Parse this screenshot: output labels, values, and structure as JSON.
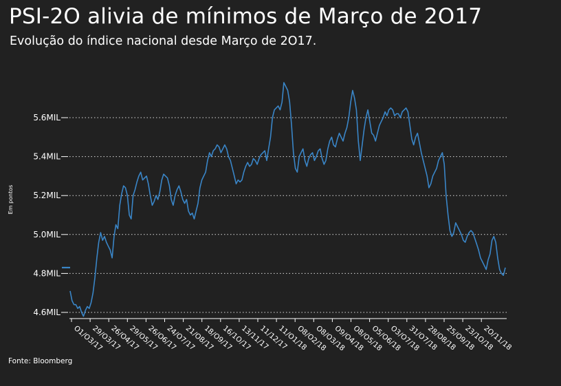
{
  "header": {
    "title": "PSI-2O alivia de mínimos de Março de 2O17",
    "subtitle": "Evolução do índice nacional desde Março de 2O17."
  },
  "footer": {
    "source": "Fonte: Bloomberg"
  },
  "colors": {
    "background": "#212121",
    "line": "#3a86c8",
    "text": "#ffffff",
    "grid": "#ffffff"
  },
  "chart_data": {
    "type": "line",
    "title": "PSI-2O alivia de mínimos de Março de 2O17",
    "subtitle": "Evolução do índice nacional desde Março de 2O17.",
    "ylabel": "Em pontos",
    "xlabel": "",
    "ylim": [
      4600,
      5800
    ],
    "grid": "horizontal-dotted",
    "y_ticks": [
      {
        "value": 4600,
        "label": "4.6MIL"
      },
      {
        "value": 4800,
        "label": "4.8MIL"
      },
      {
        "value": 5000,
        "label": "5.0MIL"
      },
      {
        "value": 5200,
        "label": "5.2MIL"
      },
      {
        "value": 5400,
        "label": "5.4MIL"
      },
      {
        "value": 5600,
        "label": "5.6MIL"
      }
    ],
    "x_ticks": [
      "O1/O3/17",
      "29/O3/17",
      "26/O4/17",
      "29/O5/17",
      "26/O6/17",
      "24/O7/17",
      "21/O8/17",
      "18/O9/17",
      "16/1O/17",
      "13/11/17",
      "11/12/17",
      "11/O1/18",
      "O8/O2/18",
      "O8/O3/18",
      "O9/O4/18",
      "O8/O5/18",
      "O5/O6/18",
      "O3/O7/18",
      "31/O7/18",
      "28/O8/18",
      "25/O9/18",
      "23/1O/18",
      "2O/11/18"
    ],
    "series": [
      {
        "values": [
          4710,
          4660,
          4640,
          4640,
          4620,
          4630,
          4600,
          4580,
          4610,
          4630,
          4620,
          4650,
          4700,
          4780,
          4880,
          4960,
          5010,
          4970,
          4990,
          4960,
          4940,
          4920,
          4880,
          4990,
          5050,
          5030,
          5150,
          5210,
          5250,
          5240,
          5200,
          5100,
          5080,
          5200,
          5230,
          5270,
          5300,
          5320,
          5280,
          5290,
          5300,
          5260,
          5200,
          5150,
          5170,
          5200,
          5180,
          5220,
          5280,
          5310,
          5300,
          5290,
          5250,
          5180,
          5150,
          5200,
          5230,
          5250,
          5220,
          5180,
          5160,
          5180,
          5120,
          5100,
          5110,
          5080,
          5120,
          5160,
          5240,
          5280,
          5300,
          5320,
          5380,
          5420,
          5400,
          5430,
          5440,
          5460,
          5450,
          5420,
          5440,
          5460,
          5440,
          5400,
          5380,
          5340,
          5300,
          5260,
          5280,
          5270,
          5280,
          5320,
          5350,
          5370,
          5350,
          5360,
          5390,
          5380,
          5360,
          5390,
          5410,
          5420,
          5430,
          5380,
          5440,
          5500,
          5600,
          5640,
          5650,
          5660,
          5640,
          5680,
          5780,
          5760,
          5740,
          5680,
          5560,
          5420,
          5340,
          5320,
          5400,
          5420,
          5440,
          5380,
          5350,
          5390,
          5410,
          5420,
          5380,
          5400,
          5430,
          5440,
          5390,
          5360,
          5380,
          5440,
          5480,
          5500,
          5460,
          5450,
          5490,
          5520,
          5500,
          5480,
          5520,
          5550,
          5600,
          5680,
          5740,
          5700,
          5640,
          5480,
          5380,
          5460,
          5540,
          5600,
          5640,
          5580,
          5520,
          5510,
          5480,
          5520,
          5560,
          5580,
          5600,
          5630,
          5610,
          5640,
          5650,
          5640,
          5610,
          5620,
          5620,
          5600,
          5630,
          5640,
          5650,
          5630,
          5560,
          5490,
          5460,
          5500,
          5520,
          5470,
          5420,
          5380,
          5340,
          5300,
          5240,
          5260,
          5300,
          5320,
          5340,
          5380,
          5400,
          5420,
          5360,
          5200,
          5100,
          5020,
          4990,
          5010,
          5060,
          5040,
          5020,
          5000,
          4970,
          4960,
          4990,
          5010,
          5020,
          5010,
          4980,
          4950,
          4920,
          4880,
          4860,
          4840,
          4820,
          4870,
          4900,
          4970,
          4990,
          4960,
          4880,
          4820,
          4800,
          4790,
          4830
        ]
      }
    ],
    "stray_segment": {
      "value": 4830
    }
  }
}
